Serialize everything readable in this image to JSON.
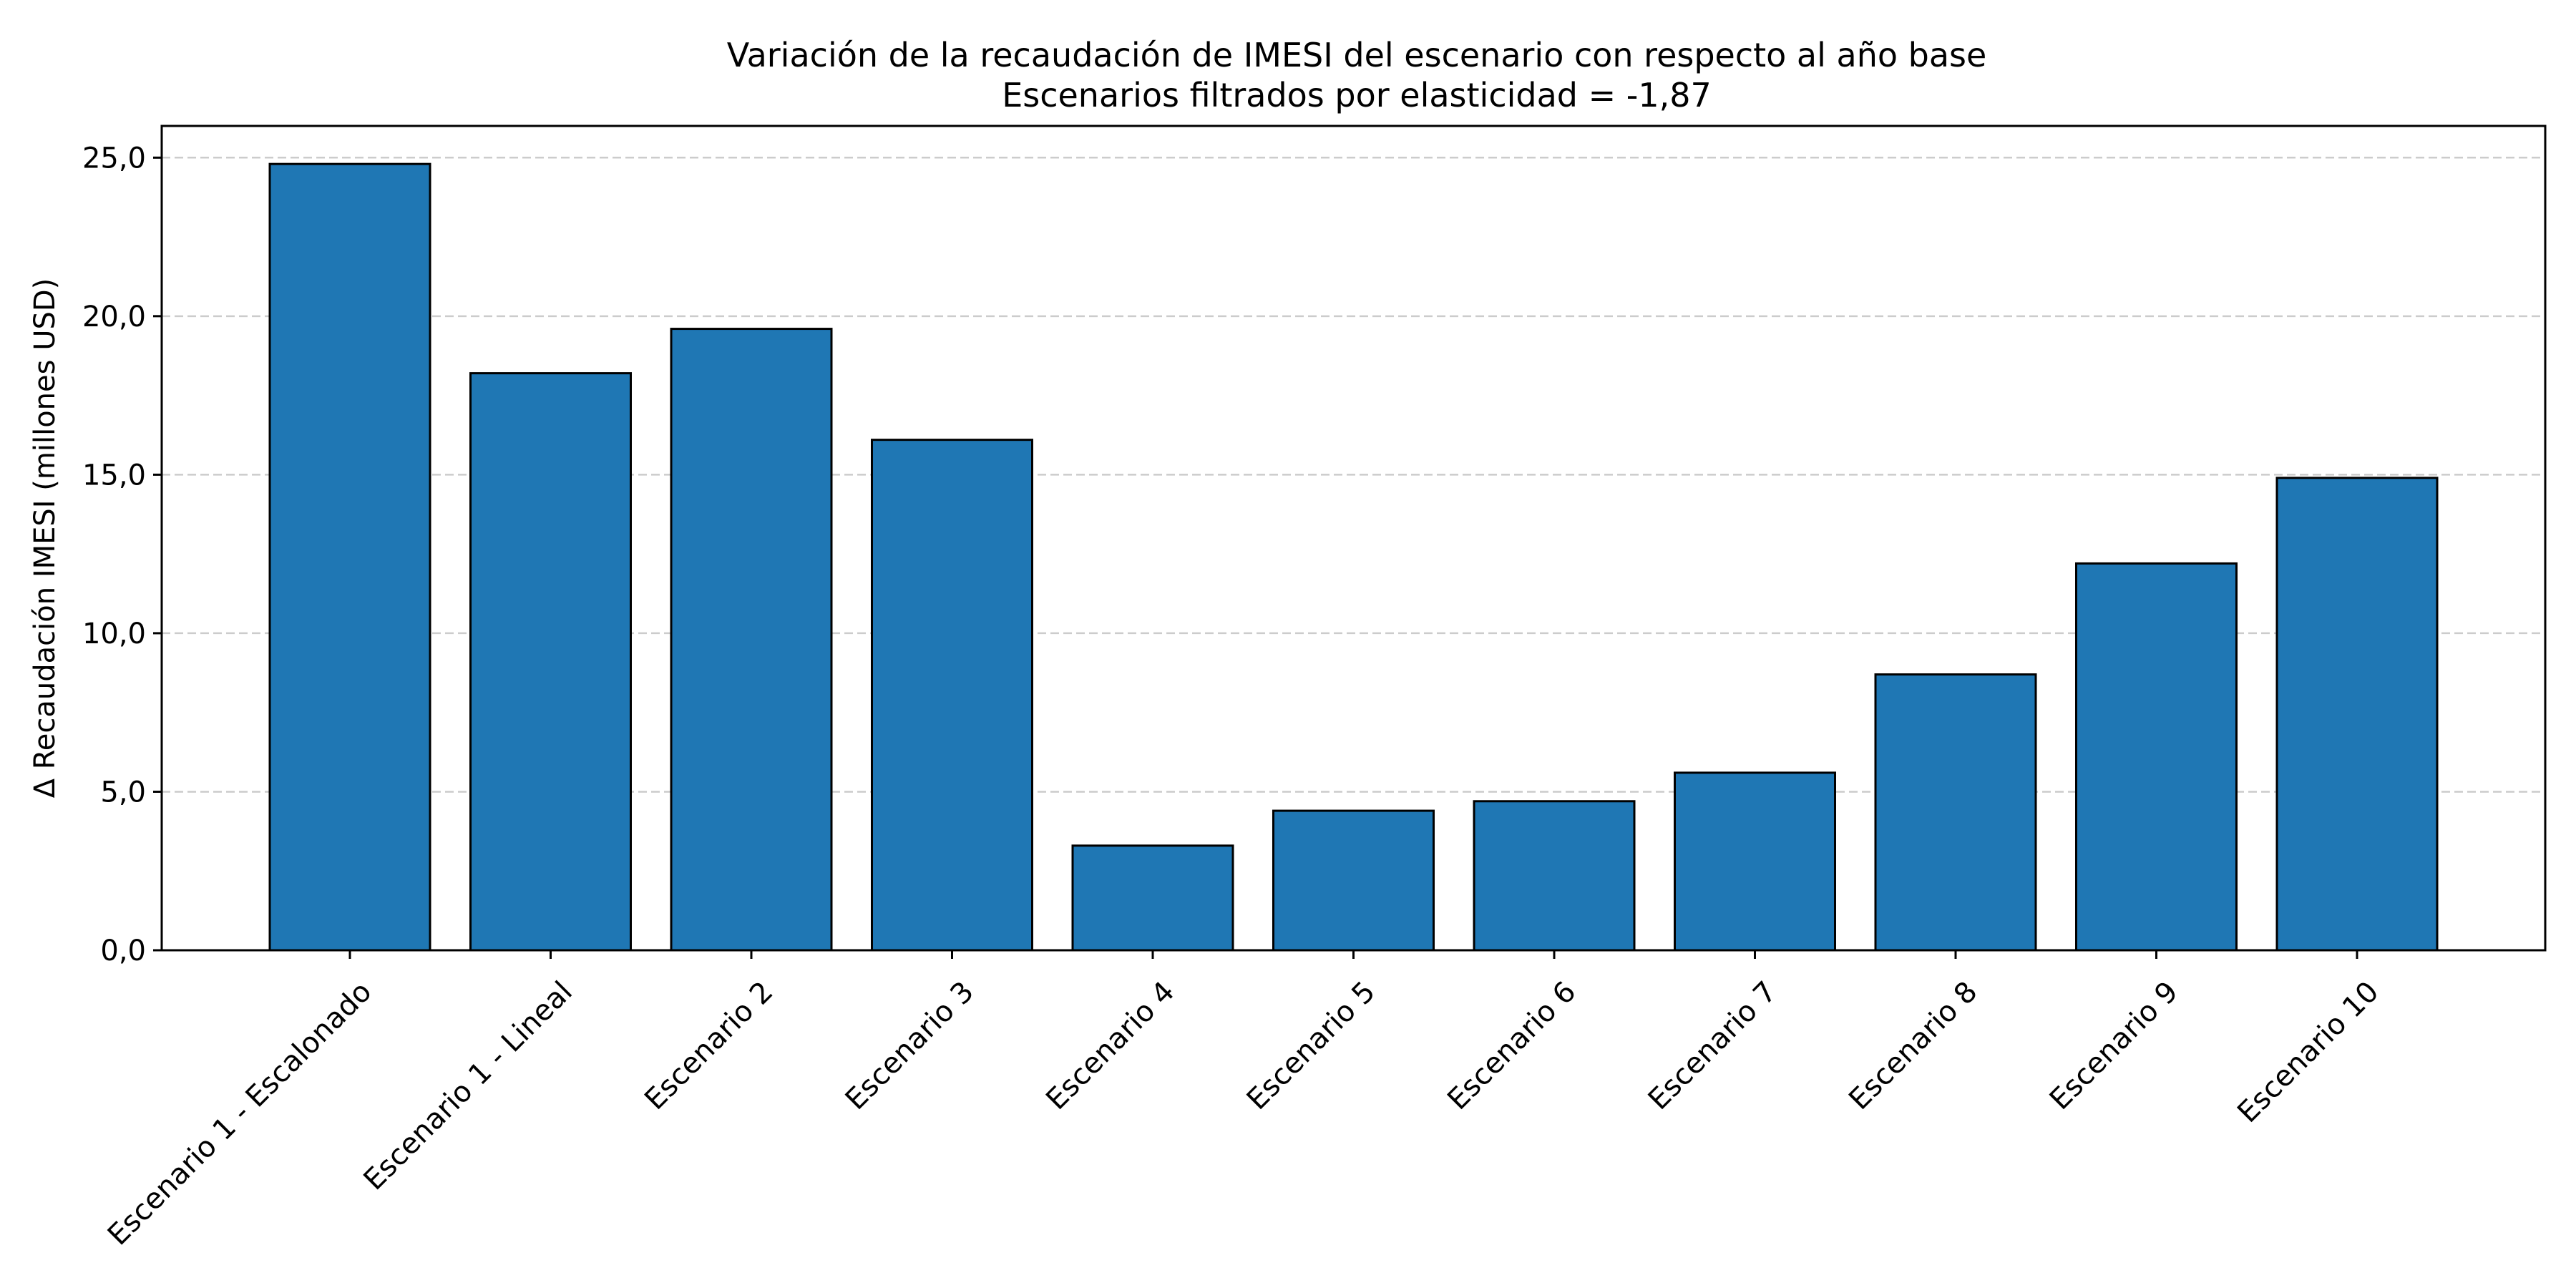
{
  "chart_data": {
    "type": "bar",
    "title": "Variación de la recaudación de IMESI del escenario con respecto al año base",
    "subtitle": "Escenarios filtrados por elasticidad = -1,87",
    "xlabel": "",
    "ylabel": "Δ Recaudación IMESI (millones USD)",
    "categories": [
      "Escenario 1 - Escalonado",
      "Escenario 1 - Lineal",
      "Escenario 2",
      "Escenario 3",
      "Escenario 4",
      "Escenario 5",
      "Escenario 6",
      "Escenario 7",
      "Escenario 8",
      "Escenario 9",
      "Escenario 10"
    ],
    "values": [
      24.8,
      18.2,
      19.6,
      16.1,
      3.3,
      4.4,
      4.7,
      5.6,
      8.7,
      12.2,
      14.9
    ],
    "ylim": [
      0,
      26
    ],
    "yticks": [
      0,
      5,
      10,
      15,
      20,
      25
    ],
    "ytick_labels": [
      "0,0",
      "5,0",
      "10,0",
      "15,0",
      "20,0",
      "25,0"
    ],
    "grid": "y-dashed",
    "legend": "none",
    "bar_color": "#1f77b4",
    "bar_edge_color": "#000000",
    "grid_color": "#cccccc"
  }
}
